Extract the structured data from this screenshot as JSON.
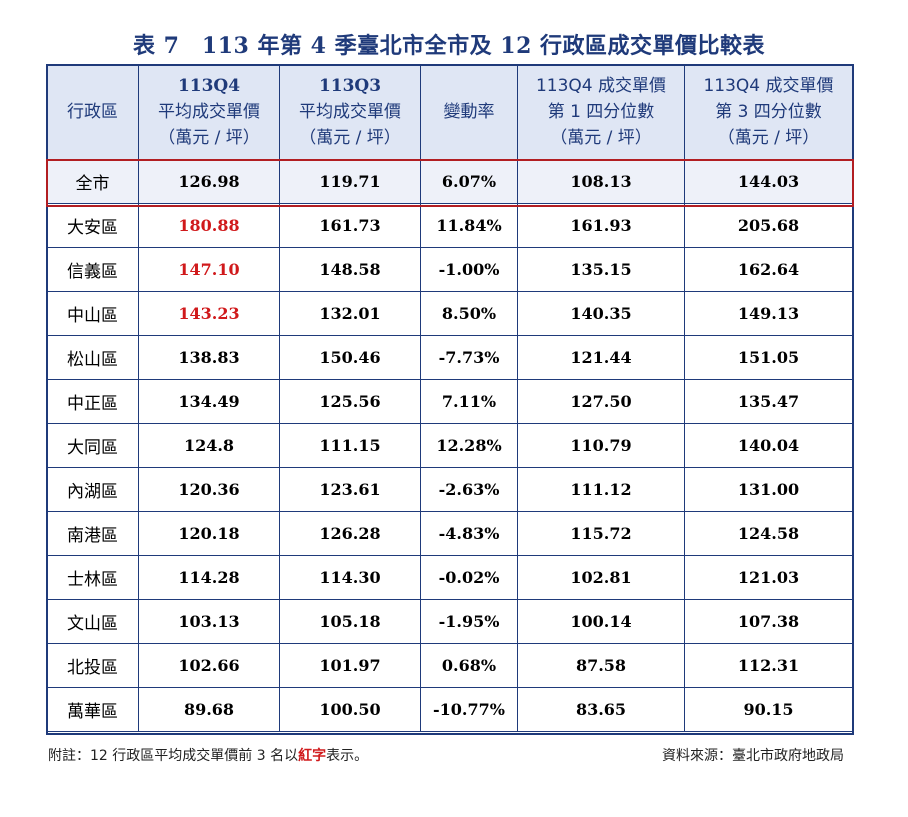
{
  "title": "表 7　113 年第 4 季臺北市全市及 12 行政區成交單價比較表",
  "headers": {
    "district": "行政區",
    "q4_l1": "113Q4",
    "q4_l2": "平均成交單價",
    "q4_l3": "（萬元 / 坪）",
    "q3_l1": "113Q3",
    "q3_l2": "平均成交單價",
    "q3_l3": "（萬元 / 坪）",
    "change": "變動率",
    "p1_l1": "113Q4 成交單價",
    "p1_l2": "第 1 四分位數",
    "p1_l3": "（萬元 / 坪）",
    "p3_l1": "113Q4 成交單價",
    "p3_l2": "第 3 四分位數",
    "p3_l3": "（萬元 / 坪）"
  },
  "total": {
    "name": "全市",
    "q4": "126.98",
    "q3": "119.71",
    "change": "6.07%",
    "p1": "108.13",
    "p3": "144.03"
  },
  "rows": [
    {
      "name": "大安區",
      "q4": "180.88",
      "q3": "161.73",
      "change": "11.84%",
      "p1": "161.93",
      "p3": "205.68",
      "top3": true
    },
    {
      "name": "信義區",
      "q4": "147.10",
      "q3": "148.58",
      "change": "-1.00%",
      "p1": "135.15",
      "p3": "162.64",
      "top3": true
    },
    {
      "name": "中山區",
      "q4": "143.23",
      "q3": "132.01",
      "change": "8.50%",
      "p1": "140.35",
      "p3": "149.13",
      "top3": true
    },
    {
      "name": "松山區",
      "q4": "138.83",
      "q3": "150.46",
      "change": "-7.73%",
      "p1": "121.44",
      "p3": "151.05",
      "top3": false
    },
    {
      "name": "中正區",
      "q4": "134.49",
      "q3": "125.56",
      "change": "7.11%",
      "p1": "127.50",
      "p3": "135.47",
      "top3": false
    },
    {
      "name": "大同區",
      "q4": "124.8",
      "q3": "111.15",
      "change": "12.28%",
      "p1": "110.79",
      "p3": "140.04",
      "top3": false
    },
    {
      "name": "內湖區",
      "q4": "120.36",
      "q3": "123.61",
      "change": "-2.63%",
      "p1": "111.12",
      "p3": "131.00",
      "top3": false
    },
    {
      "name": "南港區",
      "q4": "120.18",
      "q3": "126.28",
      "change": "-4.83%",
      "p1": "115.72",
      "p3": "124.58",
      "top3": false
    },
    {
      "name": "士林區",
      "q4": "114.28",
      "q3": "114.30",
      "change": "-0.02%",
      "p1": "102.81",
      "p3": "121.03",
      "top3": false
    },
    {
      "name": "文山區",
      "q4": "103.13",
      "q3": "105.18",
      "change": "-1.95%",
      "p1": "100.14",
      "p3": "107.38",
      "top3": false
    },
    {
      "name": "北投區",
      "q4": "102.66",
      "q3": "101.97",
      "change": "0.68%",
      "p1": "87.58",
      "p3": "112.31",
      "top3": false
    },
    {
      "name": "萬華區",
      "q4": "89.68",
      "q3": "100.50",
      "change": "-10.77%",
      "p1": "83.65",
      "p3": "90.15",
      "top3": false
    }
  ],
  "footnote": {
    "prefix": "附註：12 行政區平均成交單價前 3 名以",
    "highlight": "紅字",
    "suffix": "表示。"
  },
  "source": "資料來源：臺北市政府地政局",
  "colors": {
    "header_text": "#1f3a7a",
    "border": "#1f3a7a",
    "header_bg": "#dfe6f4",
    "highlight_red": "#d0191b",
    "total_border": "#b21e22"
  }
}
